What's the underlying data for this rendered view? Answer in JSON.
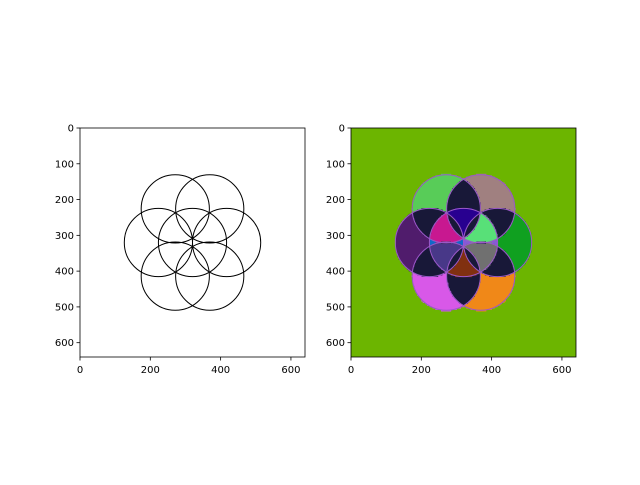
{
  "chart_data": [
    {
      "type": "image",
      "panel": "left",
      "description_type": "binary line drawing",
      "xlim": [
        0,
        640
      ],
      "ylim": [
        640,
        0
      ],
      "x_ticks": [
        0,
        200,
        400,
        600
      ],
      "y_ticks": [
        0,
        100,
        200,
        300,
        400,
        500,
        600
      ],
      "background": "#ffffff",
      "stroke_color": "#000000",
      "circles": [
        {
          "cx": 320,
          "cy": 320,
          "r": 97
        },
        {
          "cx": 271,
          "cy": 226,
          "r": 97
        },
        {
          "cx": 369,
          "cy": 226,
          "r": 97
        },
        {
          "cx": 417,
          "cy": 320,
          "r": 97
        },
        {
          "cx": 369,
          "cy": 414,
          "r": 97
        },
        {
          "cx": 271,
          "cy": 414,
          "r": 97
        },
        {
          "cx": 223,
          "cy": 320,
          "r": 97
        }
      ]
    },
    {
      "type": "image",
      "panel": "right",
      "description_type": "labeled regions",
      "xlim": [
        0,
        640
      ],
      "ylim": [
        640,
        0
      ],
      "x_ticks": [
        0,
        200,
        400,
        600
      ],
      "y_ticks": [
        0,
        100,
        200,
        300,
        400,
        500,
        600
      ],
      "background": "#6cb500",
      "boundary_color": "#9a58c8",
      "region_colors": {
        "top_left_petal": "#58cc58",
        "top_right_petal": "#a08080",
        "right_petal": "#10a020",
        "bottom_right_petal": "#f08818",
        "bottom_left_petal": "#d858e8",
        "left_petal": "#501c6c",
        "upper_left_lens": "#1068c8",
        "upper_center_lens": "#684c2c",
        "upper_right_lens": "#304c10",
        "lower_right_lens": "#8858d8",
        "lower_center_lens": "#8888f0",
        "lower_left_lens": "#488040",
        "inner_top": "#280090",
        "inner_upper_right": "#58e078",
        "inner_lower_right": "#707070",
        "inner_bottom": "#803010",
        "inner_lower_left": "#483888",
        "inner_upper_left": "#c81890",
        "center_core": "#181838"
      }
    }
  ]
}
